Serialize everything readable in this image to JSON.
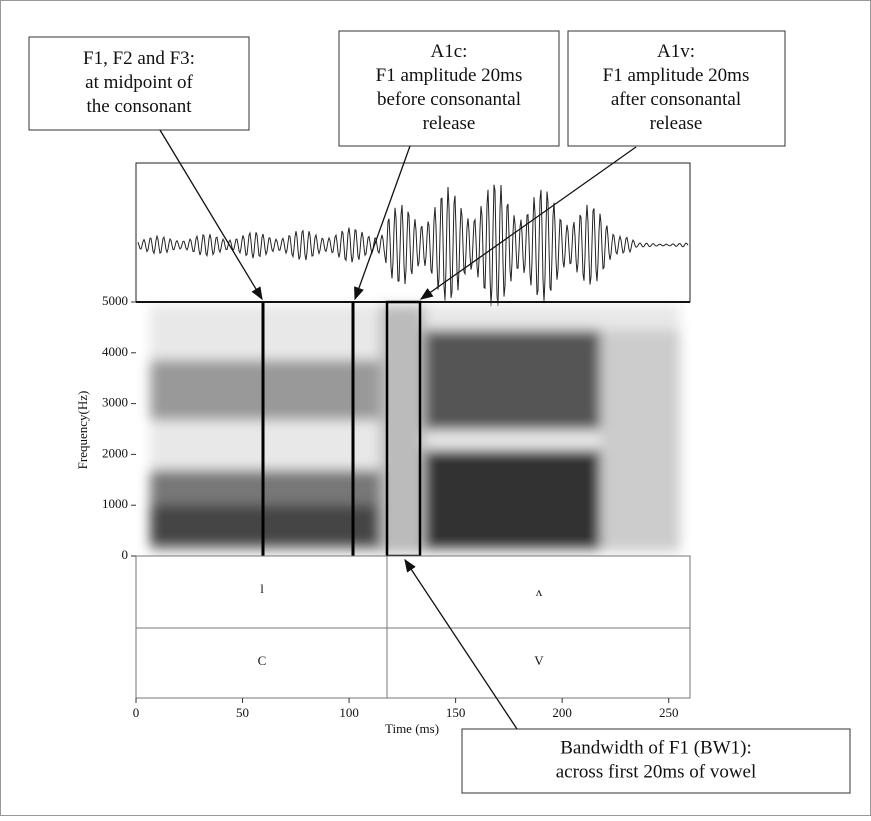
{
  "callouts": [
    {
      "lines": [
        "F1, F2 and F3:",
        "at midpoint of",
        "the consonant"
      ]
    },
    {
      "lines": [
        "A1c:",
        "F1 amplitude 20ms",
        "before consonantal",
        "release"
      ]
    },
    {
      "lines": [
        "A1v:",
        "F1 amplitude 20ms",
        "after consonantal",
        "release"
      ]
    },
    {
      "lines": [
        "Bandwidth of F1 (BW1):",
        "across first 20ms of vowel"
      ]
    }
  ],
  "chart_data": {
    "type": "spectrogram",
    "x_axis": {
      "label": "Time (ms)",
      "lim": [
        0,
        260
      ],
      "ticks": [
        0,
        50,
        100,
        150,
        200,
        250
      ]
    },
    "y_axis": {
      "label": "Frequency(Hz)",
      "lim": [
        0,
        5000
      ],
      "ticks": [
        0,
        1000,
        2000,
        3000,
        4000,
        5000
      ]
    },
    "tiers": [
      {
        "labels": [
          "l",
          "ʌ"
        ]
      },
      {
        "labels": [
          "C",
          "V"
        ]
      }
    ]
  }
}
